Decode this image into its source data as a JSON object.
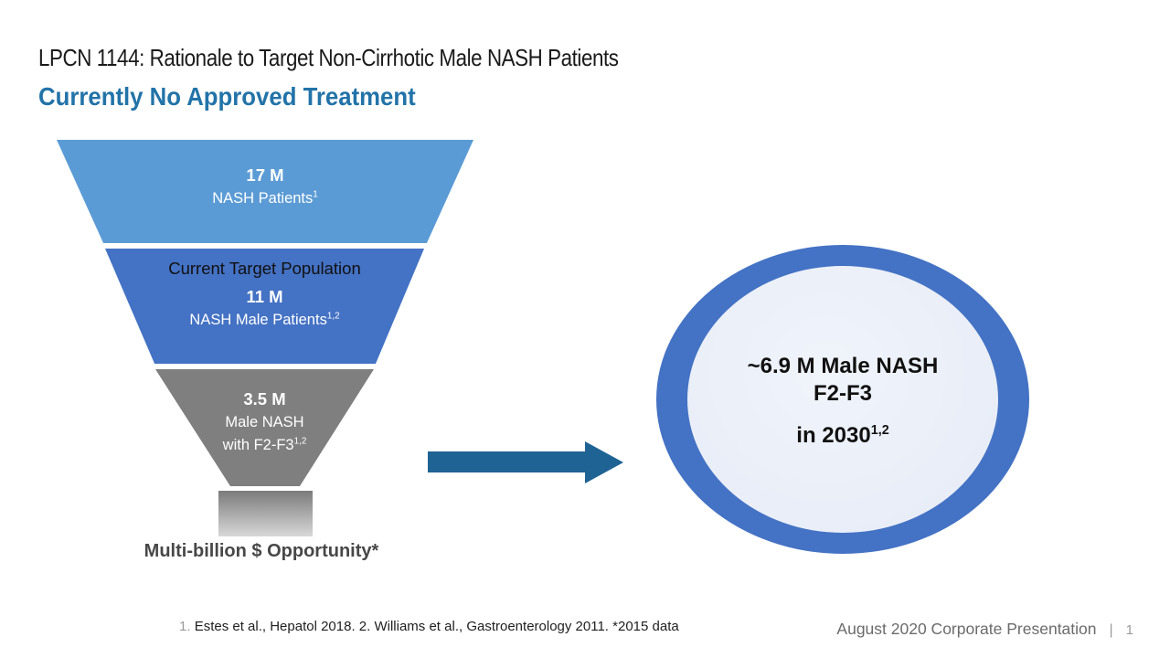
{
  "header": {
    "title": "LPCN 1144: Rationale to Target Non-Cirrhotic Male NASH Patients",
    "subtitle": "Currently No Approved Treatment"
  },
  "chart_data": {
    "type": "funnel",
    "title": "NASH patient population funnel",
    "stages": [
      {
        "value_millions": 17,
        "value_label": "17 M",
        "label": "NASH Patients",
        "reference": "1",
        "color": "#5B9BD5"
      },
      {
        "value_millions": 11,
        "value_label": "11 M",
        "label": "NASH Male Patients",
        "heading": "Current Target Population",
        "reference": "1,2",
        "color": "#4472C4"
      },
      {
        "value_millions": 3.5,
        "value_label": "3.5 M",
        "label": "Male NASH with F2-F3",
        "reference": "1,2",
        "color": "#7F7F7F"
      }
    ]
  },
  "funnel": {
    "segments": [
      {
        "value": "17 M",
        "label": "NASH Patients",
        "ref": "1"
      },
      {
        "heading": "Current Target Population",
        "value": "11 M",
        "label": "NASH Male Patients",
        "ref": "1,2"
      },
      {
        "value": "3.5 M",
        "label": "Male NASH",
        "label2": "with F2-F3",
        "ref": "1,2"
      }
    ],
    "caption": "Multi-billion $ Opportunity*"
  },
  "circle": {
    "line1": "~6.9 M Male NASH",
    "line2": "F2-F3",
    "line3": "in 2030",
    "line3_ref": "1,2"
  },
  "footnotes": {
    "marker": "1.",
    "body": "Estes et al., Hepatol 2018.  2.  Williams et al., Gastroenterology  2011.   *2015 data"
  },
  "footer": {
    "label": "August 2020 Corporate Presentation",
    "separator": "|",
    "page_number": "1"
  },
  "colors": {
    "funnel_top": "#5B9BD5",
    "funnel_middle": "#4472C4",
    "funnel_bottom": "#7F7F7F",
    "stem_gradient_top": "#7B7B7B",
    "stem_gradient_bottom": "#D8D8D8",
    "arrow": "#1F6394",
    "subtitle": "#2273A8",
    "circle_ring": "#4472C4",
    "circle_fill": "#E9EDF7",
    "caption_text": "#474747"
  }
}
